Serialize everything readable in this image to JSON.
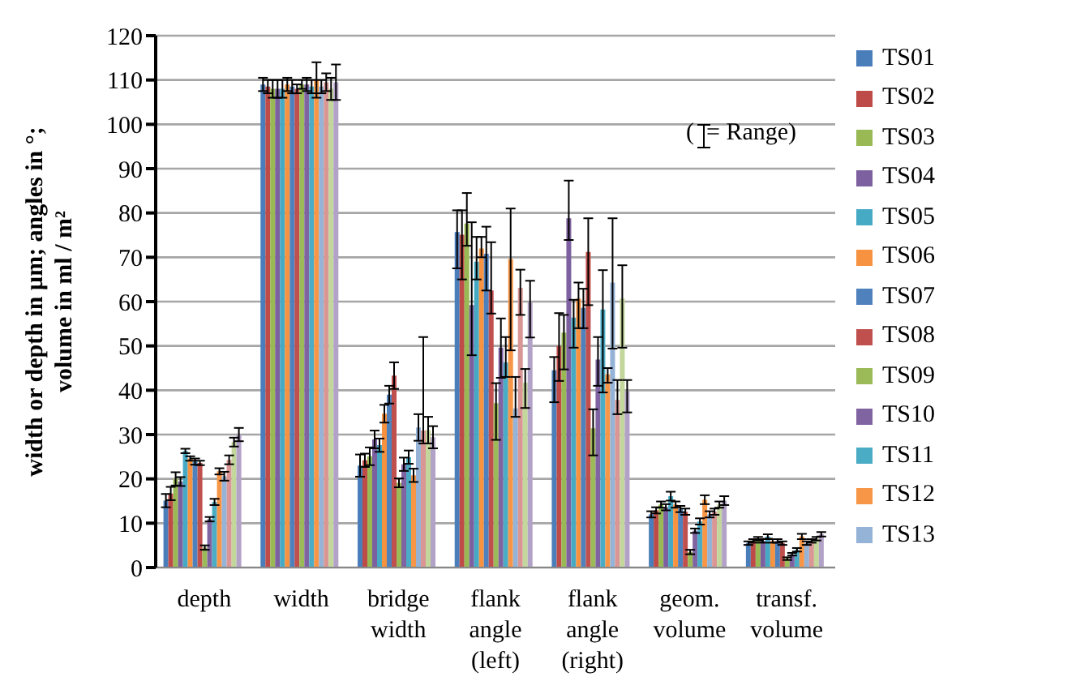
{
  "chart_data": {
    "type": "bar",
    "ylabel": "width or depth in µm; angles in °; volume in ml / m²",
    "categories": [
      "depth",
      "width",
      "bridge width",
      "flank angle (left)",
      "flank angle (right)",
      "geom. volume",
      "transf. volume"
    ],
    "ylim": [
      0,
      120
    ],
    "yticks": [
      0,
      10,
      20,
      30,
      40,
      50,
      60,
      70,
      80,
      90,
      100,
      110,
      120
    ],
    "grid": "y",
    "legend": "right",
    "annotations": [
      "(  = Range)"
    ],
    "series": [
      {
        "name": "TS01",
        "color": "#4a7ebb",
        "values": [
          15.1,
          109,
          23,
          75.7,
          44.5,
          12,
          5.5
        ],
        "errors": [
          1.5,
          1.5,
          2.5,
          [
            67.5,
            80.6
          ],
          [
            37.3,
            47.5
          ],
          0.7,
          0.4
        ]
      },
      {
        "name": "TS02",
        "color": "#be4b48",
        "values": [
          16.7,
          108.5,
          24.2,
          75.1,
          50,
          12.9,
          6
        ],
        "errors": [
          1.5,
          1.5,
          1.5,
          [
            65,
            80.6
          ],
          [
            42.1,
            57.4
          ],
          0.7,
          0.4
        ]
      },
      {
        "name": "TS03",
        "color": "#98b954",
        "values": [
          20,
          108,
          25.1,
          77.6,
          53,
          14.2,
          6.5
        ],
        "errors": [
          1.5,
          2,
          2,
          [
            72.6,
            84.5
          ],
          [
            44.7,
            57
          ],
          0.7,
          0.4
        ]
      },
      {
        "name": "TS04",
        "color": "#7d60a0",
        "values": [
          19.4,
          108,
          28.9,
          59.2,
          78.8,
          13.6,
          6
        ],
        "errors": [
          1,
          2,
          2,
          [
            47.9,
            77.9
          ],
          [
            73.9,
            87.3
          ],
          0.7,
          0.4
        ]
      },
      {
        "name": "TS05",
        "color": "#46aac5",
        "values": [
          26.3,
          108,
          27.6,
          69,
          56.4,
          16.1,
          7
        ],
        "errors": [
          0.5,
          2,
          1.5,
          [
            65,
            74.6
          ],
          [
            49.6,
            60.4
          ],
          1,
          0.5
        ]
      },
      {
        "name": "TS06",
        "color": "#f69240",
        "values": [
          24.6,
          109,
          34.7,
          72,
          60.7,
          14.2,
          6
        ],
        "errors": [
          0.5,
          1.5,
          2,
          [
            70,
            74.6
          ],
          [
            54,
            64.3
          ],
          0.7,
          0.4
        ]
      },
      {
        "name": "TS07",
        "color": "#4f81bd",
        "values": [
          23.9,
          108.5,
          39,
          70.8,
          58.6,
          13.2,
          6
        ],
        "errors": [
          0.7,
          1.5,
          2,
          [
            62.5,
            76.9
          ],
          [
            54,
            62.9
          ],
          0.7,
          0.4
        ]
      },
      {
        "name": "TS08",
        "color": "#c0504d",
        "values": [
          23.6,
          108,
          43.3,
          62.5,
          71.2,
          12.6,
          5.5
        ],
        "errors": [
          0.5,
          1,
          3,
          [
            57.3,
            73.4
          ],
          [
            59.2,
            78.8
          ],
          0.7,
          0.4
        ]
      },
      {
        "name": "TS09",
        "color": "#9bbb59",
        "values": [
          4.5,
          109,
          19.1,
          37.1,
          31.4,
          3.5,
          2
        ],
        "errors": [
          0.5,
          1,
          1,
          [
            28.8,
            41.6
          ],
          [
            25.3,
            35.7
          ],
          0.5,
          0.3
        ]
      },
      {
        "name": "TS10",
        "color": "#8064a2",
        "values": [
          10.9,
          109,
          23.3,
          49.6,
          46.9,
          8.3,
          3
        ],
        "errors": [
          0.5,
          1.5,
          1.5,
          [
            42.8,
            56.2
          ],
          [
            41,
            52
          ],
          0.5,
          0.3
        ]
      },
      {
        "name": "TS11",
        "color": "#4bacc6",
        "values": [
          14.8,
          108.5,
          24.9,
          46.3,
          58.2,
          10.4,
          4
        ],
        "errors": [
          0.7,
          1.5,
          1.5,
          [
            43,
            52
          ],
          [
            39.5,
            67.1
          ],
          0.7,
          0.4
        ]
      },
      {
        "name": "TS12",
        "color": "#f79646",
        "values": [
          21.7,
          110,
          20.8,
          69.6,
          43.6,
          15.3,
          7
        ],
        "errors": [
          0.7,
          4,
          1.5,
          [
            49,
            81
          ],
          [
            41.7,
            45
          ],
          1,
          0.6
        ]
      },
      {
        "name": "TS13",
        "color": "#95b3d7",
        "values": [
          20.6,
          108.5,
          31.6,
          35.9,
          64.3,
          12,
          5.5
        ],
        "errors": [
          1,
          1.5,
          3,
          [
            34,
            43
          ],
          [
            49.4,
            78.8
          ],
          0.7,
          0.4
        ]
      },
      {
        "color": "#d99694",
        "values": [
          24.3,
          109.5,
          30.9,
          63.1,
          37.8,
          12.6,
          6
        ],
        "errors": [
          1,
          2,
          [
            28,
            52
          ],
          [
            57,
            67.2
          ],
          [
            34.6,
            42.3
          ],
          0.7,
          0.4
        ]
      },
      {
        "color": "#c3d69b",
        "values": [
          28.3,
          108,
          31,
          41.7,
          60.7,
          14.2,
          6.5
        ],
        "errors": [
          1,
          2.5,
          3,
          [
            36,
            44.8
          ],
          [
            49.6,
            68.2
          ],
          0.7,
          0.4
        ]
      },
      {
        "color": "#b3a2c7",
        "values": [
          30,
          109.5,
          29.4,
          59.8,
          39.8,
          15.1,
          7.5
        ],
        "errors": [
          1.5,
          4,
          2.5,
          [
            51.9,
            64.7
          ],
          [
            35,
            42.3
          ],
          1,
          0.5
        ]
      }
    ]
  }
}
